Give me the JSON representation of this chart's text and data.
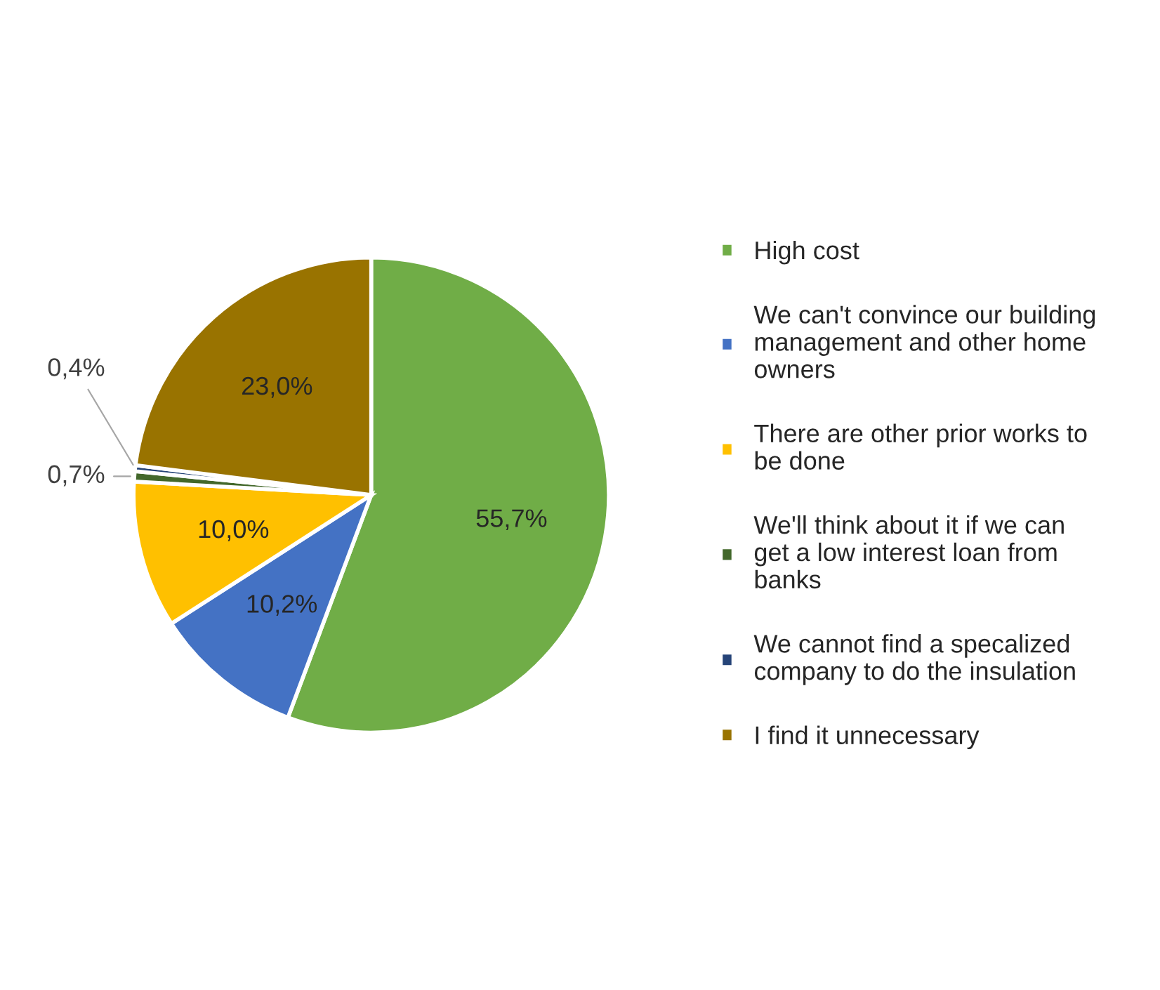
{
  "chart_data": {
    "type": "pie",
    "categories": [
      "High cost",
      "We can't convince our building management and other home owners",
      "There are other prior works to be done",
      "We'll think about it if we can get a low interest loan from banks",
      "We cannot find a specalized company to do the insulation",
      "I find it unnecessary"
    ],
    "values": [
      55.7,
      10.2,
      10.0,
      0.7,
      0.4,
      23.0
    ],
    "colors": [
      "#70ad47",
      "#4472c4",
      "#ffc000",
      "#43682b",
      "#264478",
      "#997300"
    ],
    "value_labels": [
      "55,7%",
      "10,2%",
      "10,0%",
      "0,7%",
      "0,4%",
      "23,0%"
    ],
    "legend": "right"
  }
}
